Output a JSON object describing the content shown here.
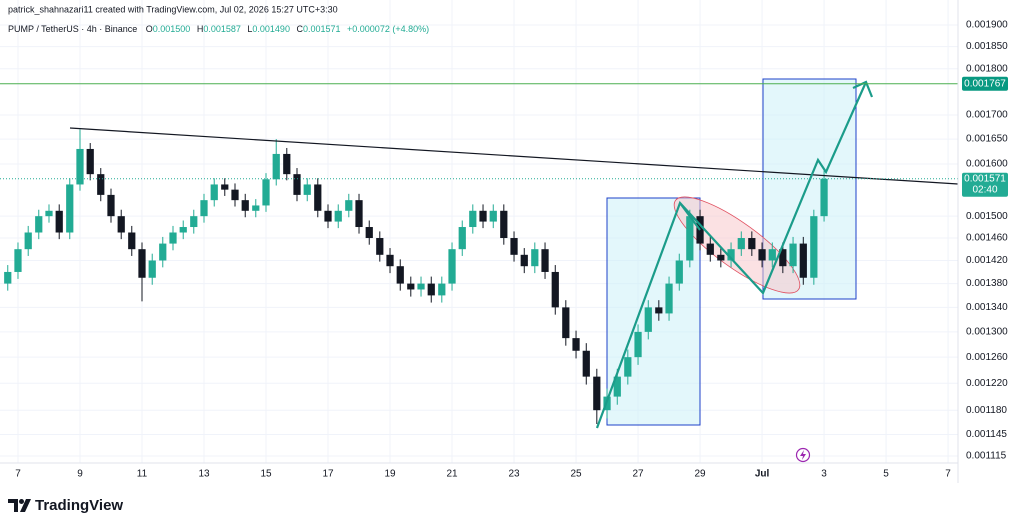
{
  "chart_data": {
    "type": "candlestick",
    "credit": "patrick_shahnazari11 created with TradingView.com, Jul 02, 2026 15:27 UTC+3:30",
    "symbol": "PUMP / TetherUS · 4h · Binance",
    "ohlc_legend": {
      "o_label": "O",
      "o": "0.001500",
      "h_label": "H",
      "h": "0.001587",
      "l_label": "L",
      "l": "0.001490",
      "c_label": "C",
      "c": "0.001571",
      "change": "+0.000072 (+4.80%)"
    },
    "x": [
      -0.33,
      0,
      0.33,
      0.67,
      1,
      1.33,
      1.67,
      2,
      2.33,
      2.67,
      3,
      3.33,
      3.67,
      4,
      4.33,
      4.67,
      5,
      5.33,
      5.67,
      6,
      6.33,
      6.67,
      7,
      7.33,
      7.67,
      8,
      8.33,
      8.67,
      9,
      9.33,
      9.67,
      10,
      10.33,
      10.67,
      11,
      11.33,
      11.67,
      12,
      12.33,
      12.67,
      13,
      13.33,
      13.67,
      14,
      14.33,
      14.67,
      15,
      15.33,
      15.67,
      16,
      16.33,
      16.67,
      17,
      17.33,
      17.67,
      18,
      18.33,
      18.67,
      19,
      19.33,
      19.67,
      20,
      20.33,
      20.67,
      21,
      21.33,
      21.67,
      22,
      22.33,
      22.67,
      23,
      23.33,
      23.67,
      24,
      24.33,
      24.67,
      25,
      25.33,
      25.67,
      26
    ],
    "open": [
      0.00138,
      0.0014,
      0.00144,
      0.00147,
      0.0015,
      0.00151,
      0.00147,
      0.00156,
      0.00163,
      0.00158,
      0.00154,
      0.0015,
      0.00147,
      0.00144,
      0.00139,
      0.00142,
      0.00145,
      0.00147,
      0.00148,
      0.0015,
      0.00153,
      0.00156,
      0.00155,
      0.00153,
      0.00151,
      0.00152,
      0.00157,
      0.00162,
      0.00158,
      0.00154,
      0.00156,
      0.00151,
      0.00149,
      0.00151,
      0.00153,
      0.00148,
      0.00146,
      0.00143,
      0.00141,
      0.00138,
      0.00137,
      0.00138,
      0.00136,
      0.00138,
      0.00144,
      0.00148,
      0.00151,
      0.00149,
      0.00151,
      0.00146,
      0.00143,
      0.00141,
      0.00144,
      0.0014,
      0.00134,
      0.00129,
      0.00127,
      0.00123,
      0.00118,
      0.0012,
      0.00123,
      0.00126,
      0.0013,
      0.00134,
      0.00133,
      0.00138,
      0.00142,
      0.0015,
      0.00145,
      0.00143,
      0.00142,
      0.00144,
      0.00146,
      0.00144,
      0.00142,
      0.00144,
      0.00141,
      0.00145,
      0.00139,
      0.0015
    ],
    "high": [
      0.001412,
      0.001452,
      0.001482,
      0.001512,
      0.001522,
      0.001522,
      0.001572,
      0.00167,
      0.001642,
      0.001592,
      0.001552,
      0.001512,
      0.001482,
      0.001452,
      0.001432,
      0.001462,
      0.001482,
      0.001492,
      0.001512,
      0.001542,
      0.001572,
      0.001572,
      0.001562,
      0.001542,
      0.001532,
      0.001582,
      0.00165,
      0.001632,
      0.001592,
      0.001572,
      0.001572,
      0.001522,
      0.001522,
      0.001542,
      0.001542,
      0.001492,
      0.001472,
      0.001442,
      0.001422,
      0.001392,
      0.001392,
      0.001392,
      0.001392,
      0.001452,
      0.001492,
      0.001522,
      0.001522,
      0.001522,
      0.001522,
      0.001472,
      0.001442,
      0.001452,
      0.001452,
      0.001412,
      0.001352,
      0.001302,
      0.001282,
      0.001242,
      0.001212,
      0.001242,
      0.001272,
      0.001312,
      0.001352,
      0.001352,
      0.001392,
      0.001432,
      0.001512,
      0.001512,
      0.001462,
      0.001442,
      0.001452,
      0.001472,
      0.001472,
      0.001452,
      0.001452,
      0.001452,
      0.001462,
      0.001462,
      0.001512,
      0.001587
    ],
    "low": [
      0.001368,
      0.001388,
      0.001428,
      0.001458,
      0.001488,
      0.001458,
      0.001458,
      0.001548,
      0.001568,
      0.001528,
      0.001488,
      0.001458,
      0.001428,
      0.00135,
      0.001378,
      0.001408,
      0.001438,
      0.001458,
      0.001468,
      0.001488,
      0.001518,
      0.001538,
      0.001518,
      0.001498,
      0.001498,
      0.001508,
      0.001558,
      0.001568,
      0.001528,
      0.001528,
      0.001498,
      0.001478,
      0.001478,
      0.001498,
      0.001468,
      0.001448,
      0.001418,
      0.001398,
      0.001368,
      0.001358,
      0.001358,
      0.001348,
      0.001348,
      0.001368,
      0.001428,
      0.001468,
      0.001478,
      0.001478,
      0.001448,
      0.001418,
      0.001398,
      0.001398,
      0.001388,
      0.001328,
      0.001278,
      0.001258,
      0.001218,
      0.00116,
      0.001168,
      0.001188,
      0.001218,
      0.001248,
      0.001288,
      0.001318,
      0.001318,
      0.001368,
      0.001408,
      0.001438,
      0.001418,
      0.001408,
      0.001408,
      0.001428,
      0.001428,
      0.001408,
      0.001408,
      0.001398,
      0.001398,
      0.001378,
      0.001378,
      0.00149
    ],
    "close": [
      0.0014,
      0.00144,
      0.00147,
      0.0015,
      0.00151,
      0.00147,
      0.00156,
      0.00163,
      0.00158,
      0.00154,
      0.0015,
      0.00147,
      0.00144,
      0.00139,
      0.00142,
      0.00145,
      0.00147,
      0.00148,
      0.0015,
      0.00153,
      0.00156,
      0.00155,
      0.00153,
      0.00151,
      0.00152,
      0.00157,
      0.00162,
      0.00158,
      0.00154,
      0.00156,
      0.00151,
      0.00149,
      0.00151,
      0.00153,
      0.00148,
      0.00146,
      0.00143,
      0.00141,
      0.00138,
      0.00137,
      0.00138,
      0.00136,
      0.00138,
      0.00144,
      0.00148,
      0.00151,
      0.00149,
      0.00151,
      0.00146,
      0.00143,
      0.00141,
      0.00144,
      0.0014,
      0.00134,
      0.00129,
      0.00127,
      0.00123,
      0.00118,
      0.0012,
      0.00123,
      0.00126,
      0.0013,
      0.00134,
      0.00133,
      0.00138,
      0.00142,
      0.0015,
      0.00145,
      0.00143,
      0.00142,
      0.00144,
      0.00146,
      0.00144,
      0.00142,
      0.00144,
      0.00141,
      0.00145,
      0.00139,
      0.0015,
      0.001571
    ],
    "up_color": "#22ab94",
    "down_color": "#131722",
    "log_scale": true,
    "xlim": [
      -0.58,
      30.32
    ],
    "xticks": [
      {
        "value": 0,
        "label": "7"
      },
      {
        "value": 2,
        "label": "9"
      },
      {
        "value": 4,
        "label": "11"
      },
      {
        "value": 6,
        "label": "13"
      },
      {
        "value": 8,
        "label": "15"
      },
      {
        "value": 10,
        "label": "17"
      },
      {
        "value": 12,
        "label": "19"
      },
      {
        "value": 14,
        "label": "21"
      },
      {
        "value": 16,
        "label": "23"
      },
      {
        "value": 18,
        "label": "25"
      },
      {
        "value": 20,
        "label": "27"
      },
      {
        "value": 22,
        "label": "29"
      },
      {
        "value": 24,
        "label": "Jul"
      },
      {
        "value": 26,
        "label": "3"
      },
      {
        "value": 28,
        "label": "5"
      },
      {
        "value": 30,
        "label": "7"
      }
    ],
    "ylim": [
      0.0011054,
      0.0019237
    ],
    "yticks": [
      {
        "value": 0.0019,
        "label": "0.001900"
      },
      {
        "value": 0.00185,
        "label": "0.001850"
      },
      {
        "value": 0.0018,
        "label": "0.001800"
      },
      {
        "value": 0.0017,
        "label": "0.001700"
      },
      {
        "value": 0.00165,
        "label": "0.001650"
      },
      {
        "value": 0.0016,
        "label": "0.001600"
      },
      {
        "value": 0.0015,
        "label": "0.001500"
      },
      {
        "value": 0.00146,
        "label": "0.001460"
      },
      {
        "value": 0.00142,
        "label": "0.001420"
      },
      {
        "value": 0.00138,
        "label": "0.001380"
      },
      {
        "value": 0.00134,
        "label": "0.001340"
      },
      {
        "value": 0.0013,
        "label": "0.001300"
      },
      {
        "value": 0.00126,
        "label": "0.001260"
      },
      {
        "value": 0.00122,
        "label": "0.001220"
      },
      {
        "value": 0.00118,
        "label": "0.001180"
      },
      {
        "value": 0.001145,
        "label": "0.001145"
      },
      {
        "value": 0.001115,
        "label": "0.001115"
      }
    ],
    "target_level": 0.001767,
    "target_color": "#089981",
    "current_price": 0.001571,
    "countdown": "02:40",
    "brand": "TradingView"
  }
}
